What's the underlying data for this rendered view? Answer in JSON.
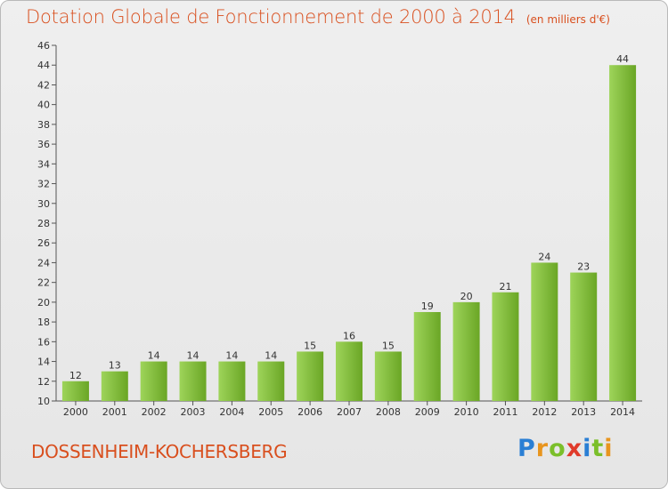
{
  "title": "Dotation Globale de Fonctionnement de 2000 à 2014",
  "unit": "(en milliers d'€)",
  "commune": "DOSSENHEIM-KOCHERSBERG",
  "brand": {
    "letters": [
      "P",
      "r",
      "o",
      "x",
      "i",
      "t",
      "i"
    ],
    "colors": [
      "#2a7fd4",
      "#e8951e",
      "#7bbf2a",
      "#e03a2a",
      "#2a7fd4",
      "#7bbf2a",
      "#e8951e"
    ]
  },
  "colors": {
    "accent": "#d94f1e",
    "bar_light": "#9ed45a",
    "bar_dark": "#6aa625"
  },
  "chart_data": {
    "type": "bar",
    "categories": [
      "2000",
      "2001",
      "2002",
      "2003",
      "2004",
      "2005",
      "2006",
      "2007",
      "2008",
      "2009",
      "2010",
      "2011",
      "2012",
      "2013",
      "2014"
    ],
    "values": [
      12,
      13,
      14,
      14,
      14,
      14,
      15,
      16,
      15,
      19,
      20,
      21,
      24,
      23,
      44
    ],
    "ylim": [
      10,
      46
    ],
    "ytick_step": 2,
    "grid": false,
    "legend": "none"
  }
}
